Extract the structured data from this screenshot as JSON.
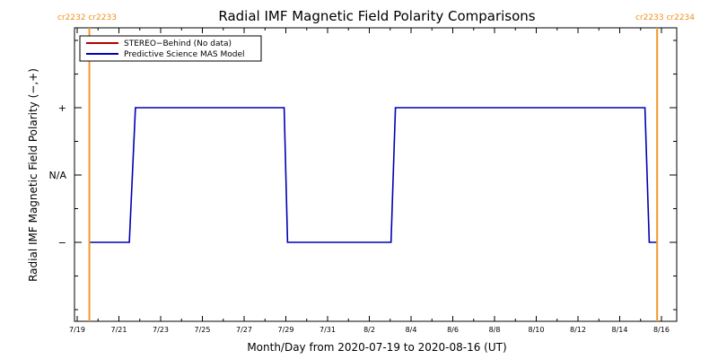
{
  "colors": {
    "stereo": "#b30000",
    "model": "#0000b4",
    "carrington": "#f29a2e",
    "axes": "#000000"
  },
  "chart_data": {
    "type": "line",
    "title": "Radial IMF Magnetic Field Polarity Comparisons",
    "xlabel": "Month/Day from 2020-07-19 to 2020-08-16 (UT)",
    "ylabel": "Radial IMF Magnetic Field Polarity (−,+)",
    "xlim": [
      "2020-07-19",
      "2020-08-16"
    ],
    "x_ticks": [
      {
        "date": "2020-07-19",
        "label": "7/19"
      },
      {
        "date": "2020-07-21",
        "label": "7/21"
      },
      {
        "date": "2020-07-23",
        "label": "7/23"
      },
      {
        "date": "2020-07-25",
        "label": "7/25"
      },
      {
        "date": "2020-07-27",
        "label": "7/27"
      },
      {
        "date": "2020-07-29",
        "label": "7/29"
      },
      {
        "date": "2020-07-31",
        "label": "7/31"
      },
      {
        "date": "2020-08-02",
        "label": "8/2"
      },
      {
        "date": "2020-08-04",
        "label": "8/4"
      },
      {
        "date": "2020-08-06",
        "label": "8/6"
      },
      {
        "date": "2020-08-08",
        "label": "8/8"
      },
      {
        "date": "2020-08-10",
        "label": "8/10"
      },
      {
        "date": "2020-08-12",
        "label": "8/12"
      },
      {
        "date": "2020-08-14",
        "label": "8/14"
      },
      {
        "date": "2020-08-16",
        "label": "8/16"
      }
    ],
    "ylim": [
      -2,
      2
    ],
    "y_ticks": [
      {
        "value": 1,
        "label": "+"
      },
      {
        "value": 0,
        "label": "N/A"
      },
      {
        "value": -1,
        "label": "−"
      }
    ],
    "legend": {
      "placement": "top-left",
      "entries": [
        "STEREO−Behind (No data)",
        "Predictive Science MAS Model"
      ]
    },
    "series": [
      {
        "name": "Predictive Science MAS Model",
        "color": "#0000b4",
        "points": [
          [
            "2020-07-19 14:00",
            -1
          ],
          [
            "2020-07-21 12:00",
            -1
          ],
          [
            "2020-07-21 19:00",
            1
          ],
          [
            "2020-07-28 22:00",
            1
          ],
          [
            "2020-07-29 02:00",
            -1
          ],
          [
            "2020-08-03 01:00",
            -1
          ],
          [
            "2020-08-03 06:00",
            1
          ],
          [
            "2020-08-15 05:00",
            1
          ],
          [
            "2020-08-15 10:00",
            -1
          ],
          [
            "2020-08-15 19:00",
            -1
          ]
        ]
      }
    ],
    "carrington_markers": [
      {
        "date": "2020-07-19 14:00",
        "label": "cr2232 cr2233"
      },
      {
        "date": "2020-08-15 19:00",
        "label": "cr2233 cr2234"
      }
    ]
  }
}
